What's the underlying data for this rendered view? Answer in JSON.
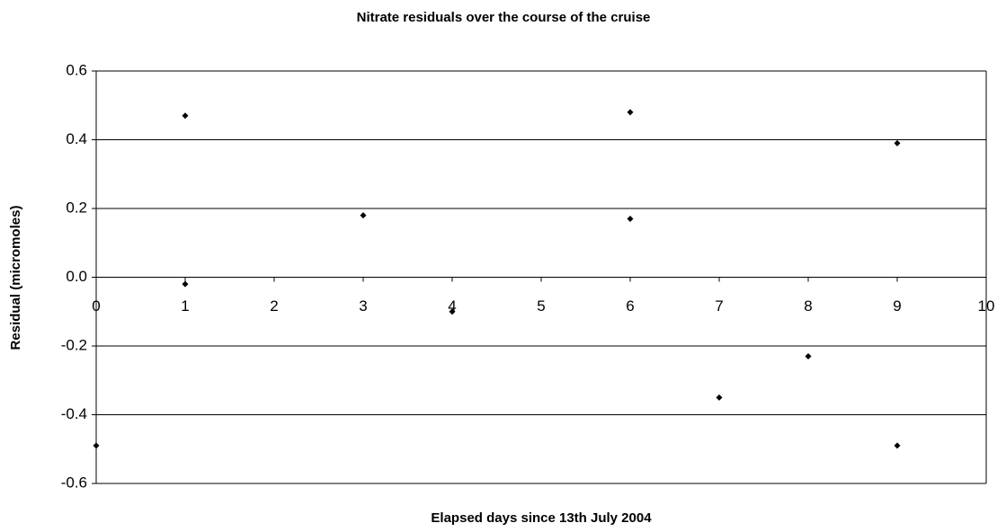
{
  "chart_data": {
    "type": "scatter",
    "title": "Nitrate residuals over the course of the cruise",
    "x_label": "Elapsed days since 13th July 2004",
    "y_label": "Residual (micromoles)",
    "series": [
      {
        "color": "#000000",
        "x": [
          0,
          1,
          1,
          3,
          4,
          6,
          6,
          7,
          8,
          9,
          9
        ],
        "values": [
          -0.49,
          0.47,
          -0.02,
          0.18,
          -0.1,
          0.48,
          0.17,
          -0.35,
          -0.23,
          0.39,
          -0.49
        ]
      }
    ],
    "xlim": [
      0,
      10
    ],
    "xticks": [
      0,
      1,
      2,
      3,
      4,
      5,
      6,
      7,
      8,
      9,
      10
    ],
    "ylim": [
      -0.6,
      0.6
    ],
    "yticks": [
      {
        "value": -0.6,
        "label": "-0.6"
      },
      {
        "value": -0.4,
        "label": "-0.4"
      },
      {
        "value": -0.2,
        "label": "-0.2"
      },
      {
        "value": 0,
        "label": "0.0"
      },
      {
        "value": 0.2,
        "label": "0.2"
      },
      {
        "value": 0.4,
        "label": "0.4"
      },
      {
        "value": 0.6,
        "label": "0.6"
      }
    ],
    "grid": true
  }
}
